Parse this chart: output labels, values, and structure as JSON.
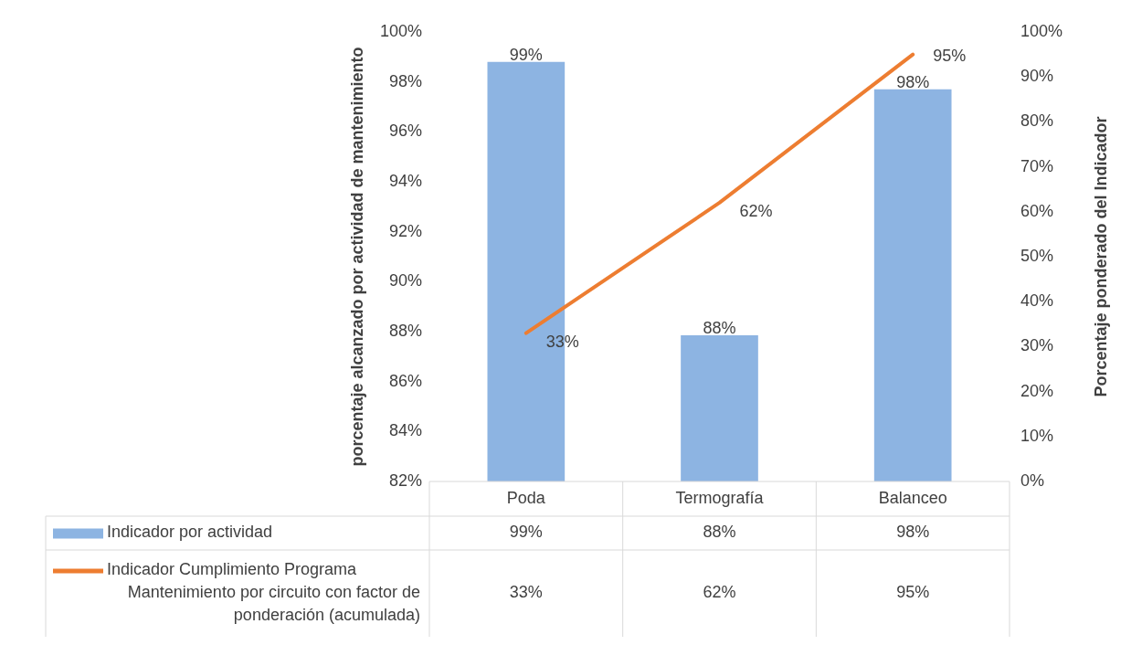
{
  "chart_data": {
    "type": "bar",
    "ylabel": "porcentaje alcanzado por actividad de mantenimiento",
    "y2label": "Porcentaje ponderado del Indicador",
    "categories": [
      "Poda",
      "Termografía",
      "Balanceo"
    ],
    "series": [
      {
        "name": "Indicador por actividad",
        "color": "#8db4e2",
        "values": [
          98.8,
          87.85,
          97.7
        ],
        "value_labels": [
          "99%",
          "88%",
          "98%"
        ]
      },
      {
        "name": "Indicador Cumplimiento Programa Mantenimiento por circuito con factor de ponderación (acumulada)",
        "type": "line",
        "axis": "y2",
        "color": "#ed7d31",
        "values": [
          33,
          62,
          95
        ],
        "value_labels": [
          "33%",
          "62%",
          "95%"
        ]
      }
    ],
    "ylim": [
      82,
      100
    ],
    "yticks": [
      {
        "value": 82,
        "label": "82%"
      },
      {
        "value": 84,
        "label": "84%"
      },
      {
        "value": 86,
        "label": "86%"
      },
      {
        "value": 88,
        "label": "88%"
      },
      {
        "value": 90,
        "label": "90%"
      },
      {
        "value": 92,
        "label": "92%"
      },
      {
        "value": 94,
        "label": "94%"
      },
      {
        "value": 96,
        "label": "96%"
      },
      {
        "value": 98,
        "label": "98%"
      },
      {
        "value": 100,
        "label": "100%"
      }
    ],
    "y2lim": [
      0,
      100
    ],
    "y2ticks": [
      {
        "value": 0,
        "label": "0%"
      },
      {
        "value": 10,
        "label": "10%"
      },
      {
        "value": 20,
        "label": "20%"
      },
      {
        "value": 30,
        "label": "30%"
      },
      {
        "value": 40,
        "label": "40%"
      },
      {
        "value": 50,
        "label": "50%"
      },
      {
        "value": 60,
        "label": "60%"
      },
      {
        "value": 70,
        "label": "70%"
      },
      {
        "value": 80,
        "label": "80%"
      },
      {
        "value": 90,
        "label": "90%"
      },
      {
        "value": 100,
        "label": "100%"
      }
    ],
    "grid": false,
    "legend": "bottom",
    "marker": "none",
    "line_style": "solid"
  }
}
